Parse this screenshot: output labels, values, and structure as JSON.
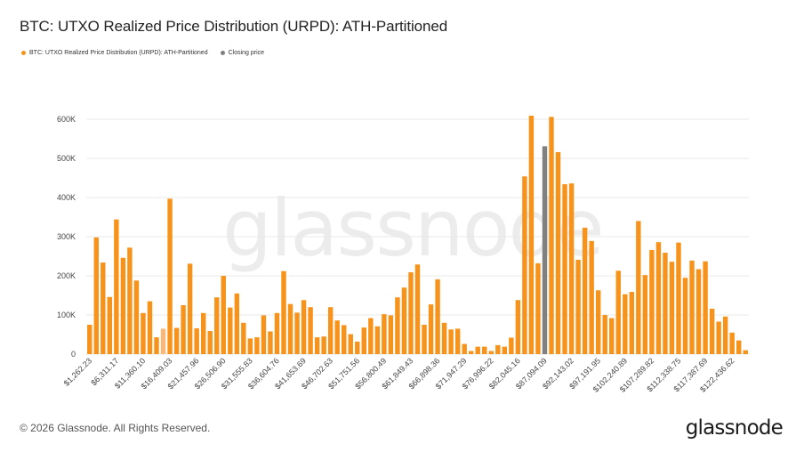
{
  "page": {
    "title": "BTC: UTXO Realized Price Distribution (URPD): ATH-Partitioned",
    "watermark": "glassnode",
    "copyright": "© 2026 Glassnode. All Rights Reserved.",
    "logo": "glassnode"
  },
  "legend": [
    {
      "label": "BTC: UTXO Realized Price Distribution (URPD): ATH-Partitioned",
      "color": "#f7931a"
    },
    {
      "label": "Closing price",
      "color": "#808080"
    }
  ],
  "colors": {
    "bar": "#f7931a",
    "bar_light": "#f9b87a",
    "closing": "#808080",
    "grid": "#e8e8e8"
  },
  "chart_data": {
    "type": "bar",
    "title": "BTC: UTXO Realized Price Distribution (URPD): ATH-Partitioned",
    "xlabel": "",
    "ylabel": "",
    "ylim": [
      0,
      600000
    ],
    "yticks": [
      0,
      100000,
      200000,
      300000,
      400000,
      500000,
      600000
    ],
    "ytick_labels": [
      "0",
      "100K",
      "200K",
      "300K",
      "400K",
      "500K",
      "600K"
    ],
    "xtick_labels": [
      "$1,262.23",
      "$6,311.17",
      "$11,360.10",
      "$16,409.03",
      "$21,457.96",
      "$26,506.90",
      "$31,555.83",
      "$36,604.76",
      "$41,653.69",
      "$46,702.63",
      "$51,751.56",
      "$56,800.49",
      "$61,849.43",
      "$66,898.36",
      "$71,947.29",
      "$76,996.22",
      "$82,045.16",
      "$87,094.09",
      "$92,143.02",
      "$97,191.95",
      "$102,240.89",
      "$107,289.82",
      "$112,338.75",
      "$117,387.69",
      "$122,436.62"
    ],
    "tick_every": 4,
    "values": [
      75000,
      298000,
      234000,
      146000,
      344000,
      246000,
      272000,
      188000,
      105000,
      135000,
      43000,
      65000,
      397000,
      67000,
      125000,
      231000,
      66000,
      105000,
      59000,
      145000,
      200000,
      119000,
      155000,
      80000,
      40000,
      43000,
      99000,
      58000,
      105000,
      212000,
      128000,
      106000,
      138000,
      120000,
      43000,
      45000,
      120000,
      86000,
      74000,
      51000,
      32000,
      68000,
      92000,
      71000,
      102000,
      99000,
      145000,
      170000,
      209000,
      229000,
      75000,
      127000,
      191000,
      80000,
      63000,
      65000,
      26000,
      8000,
      19000,
      19000,
      8000,
      23000,
      19000,
      42000,
      138000,
      454000,
      609000,
      232000,
      531000,
      606000,
      516000,
      434000,
      436000,
      241000,
      323000,
      289000,
      163000,
      100000,
      92000,
      213000,
      153000,
      159000,
      340000,
      202000,
      266000,
      286000,
      259000,
      236000,
      285000,
      195000,
      239000,
      217000,
      237000,
      116000,
      83000,
      96000,
      55000,
      35000,
      10000
    ],
    "light_index": 11,
    "closing_index": 68,
    "closing_label": "Closing price"
  }
}
